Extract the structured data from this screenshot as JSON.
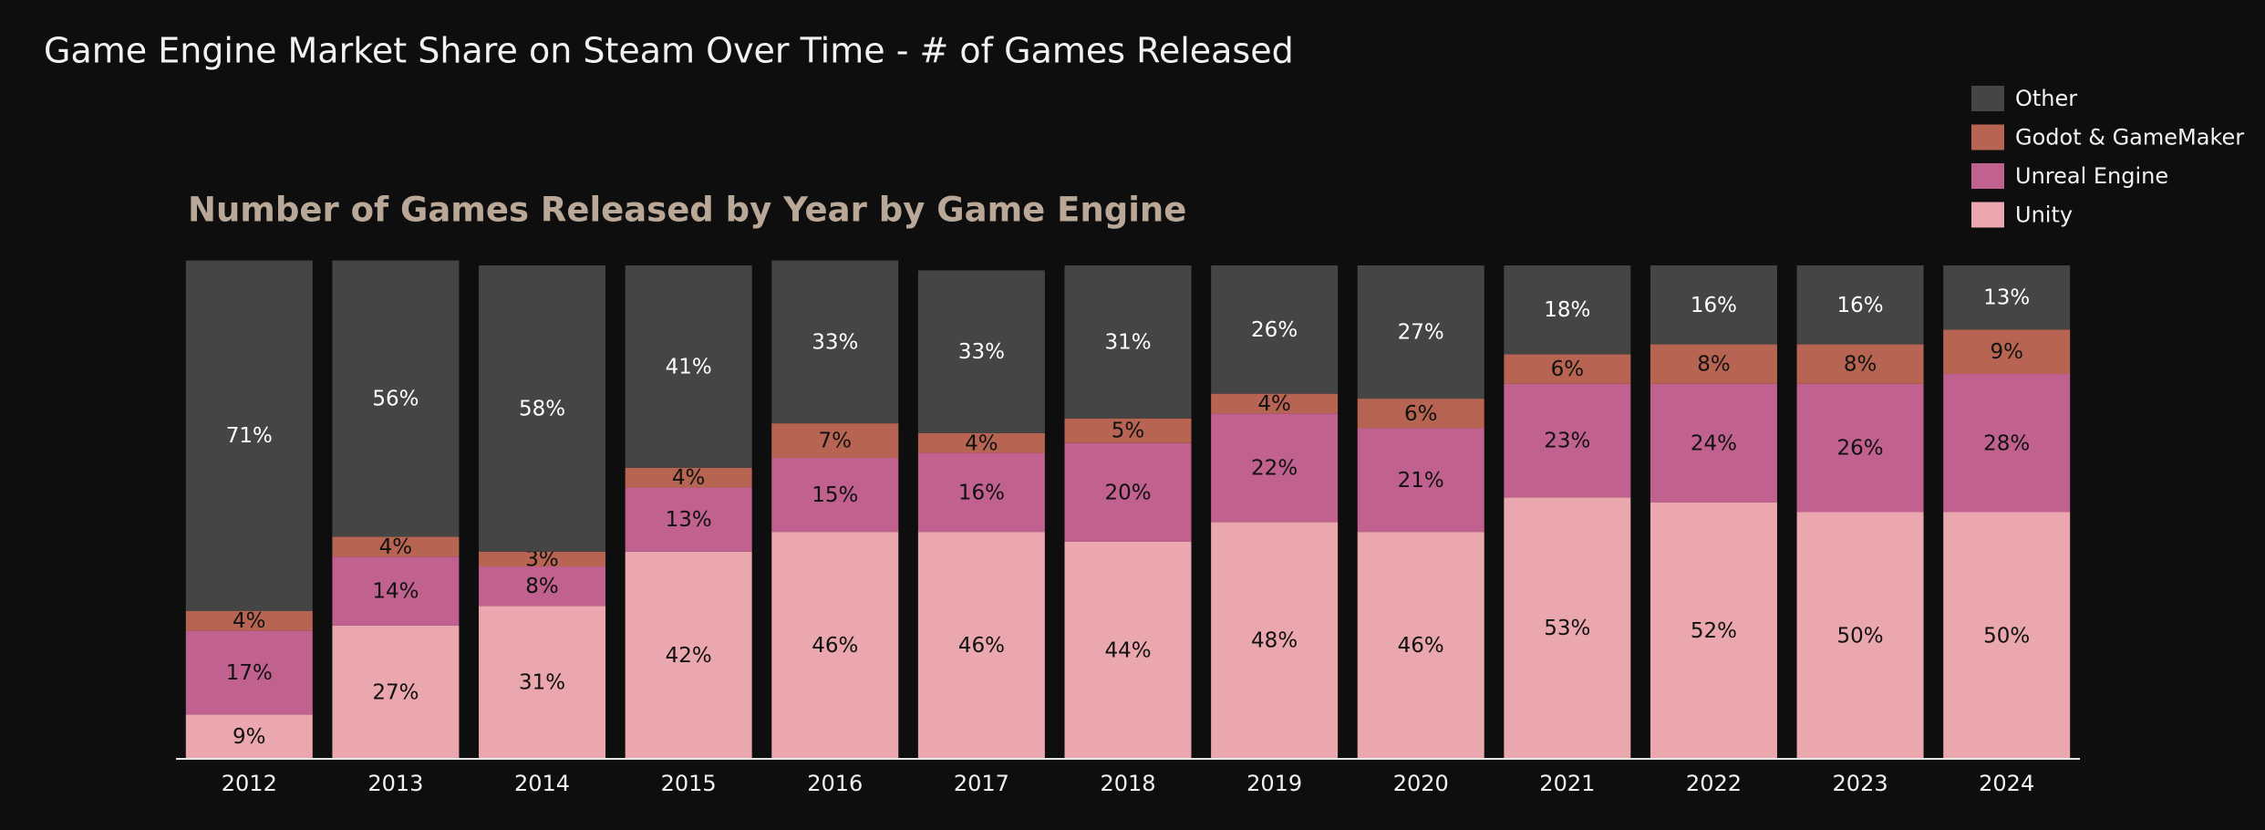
{
  "chart_data": {
    "type": "stacked_bar",
    "subtitle": "Game Engine Market Share on Steam Over Time - # of Games Released",
    "title": "Number of Games Released by Year by Game Engine",
    "categories": [
      "2012",
      "2013",
      "2014",
      "2015",
      "2016",
      "2017",
      "2018",
      "2019",
      "2020",
      "2021",
      "2022",
      "2023",
      "2024"
    ],
    "ylim": [
      0,
      100
    ],
    "legend": "top-right",
    "series": [
      {
        "name": "Unity",
        "color": "#eaa7ad",
        "label_color": "#111111",
        "values": [
          9,
          27,
          31,
          42,
          46,
          46,
          44,
          48,
          46,
          53,
          52,
          50,
          50
        ],
        "value_labels": [
          "9%",
          "27%",
          "31%",
          "42%",
          "46%",
          "46%",
          "44%",
          "48%",
          "46%",
          "53%",
          "52%",
          "50%",
          "50%"
        ]
      },
      {
        "name": "Unreal Engine",
        "color": "#c1618f",
        "label_color": "#111111",
        "values": [
          17,
          14,
          8,
          13,
          15,
          16,
          20,
          22,
          21,
          23,
          24,
          26,
          28
        ],
        "value_labels": [
          "17%",
          "14%",
          "8%",
          "13%",
          "15%",
          "16%",
          "20%",
          "22%",
          "21%",
          "23%",
          "24%",
          "26%",
          "28%"
        ]
      },
      {
        "name": "Godot & GameMaker",
        "color": "#b76552",
        "label_color": "#111111",
        "values": [
          4,
          4,
          3,
          4,
          7,
          4,
          5,
          4,
          6,
          6,
          8,
          8,
          9
        ],
        "value_labels": [
          "4%",
          "4%",
          "3%",
          "4%",
          "7%",
          "4%",
          "5%",
          "4%",
          "6%",
          "6%",
          "8%",
          "8%",
          "9%"
        ]
      },
      {
        "name": "Other",
        "color": "#454545",
        "label_color": "#ffffff",
        "values": [
          71,
          56,
          58,
          41,
          33,
          33,
          31,
          26,
          27,
          18,
          16,
          16,
          13
        ],
        "value_labels": [
          "71%",
          "56%",
          "58%",
          "41%",
          "33%",
          "33%",
          "31%",
          "26%",
          "27%",
          "18%",
          "16%",
          "16%",
          "13%"
        ]
      }
    ]
  }
}
